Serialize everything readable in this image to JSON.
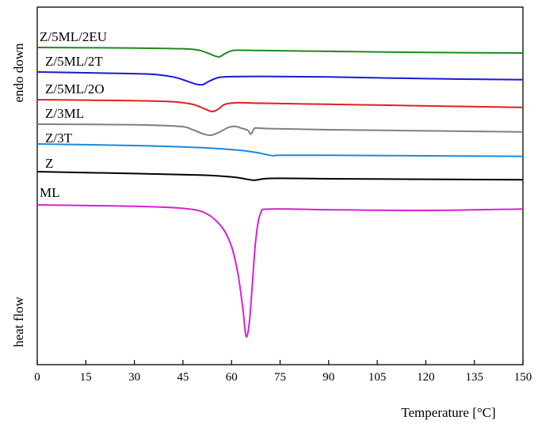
{
  "chart_data": {
    "type": "line",
    "xlabel": "Temperature [°C]",
    "ylabel_top": "endo down",
    "ylabel_bottom": "heat flow",
    "xlim": [
      0,
      150
    ],
    "xticks": [
      0,
      15,
      30,
      45,
      60,
      75,
      90,
      105,
      120,
      135,
      150
    ],
    "grid": false,
    "y_axis_values": "none (arbitrary units, curves offset vertically)",
    "series": [
      {
        "name": "Z/5ML/2EU",
        "color": "#1f8a1f",
        "x": [
          0,
          30,
          45,
          50,
          53,
          56,
          58,
          60,
          62,
          70,
          90,
          120,
          150
        ],
        "y": [
          0.0,
          -0.05,
          -0.12,
          -0.25,
          -0.55,
          -0.85,
          -0.55,
          -0.3,
          -0.25,
          -0.28,
          -0.35,
          -0.45,
          -0.5
        ]
      },
      {
        "name": "Z/5ML/2T",
        "color": "#1a1ad0",
        "x": [
          0,
          20,
          35,
          42,
          46,
          49,
          51,
          53,
          56,
          60,
          70,
          90,
          120,
          150
        ],
        "y": [
          0.0,
          -0.1,
          -0.2,
          -0.45,
          -0.8,
          -1.1,
          -1.15,
          -0.85,
          -0.5,
          -0.42,
          -0.4,
          -0.45,
          -0.6,
          -0.7
        ]
      },
      {
        "name": "Z/5ML/2O",
        "color": "#e02020",
        "x": [
          0,
          30,
          42,
          48,
          51,
          54,
          56,
          58,
          62,
          70,
          100,
          130,
          150
        ],
        "y": [
          0.0,
          -0.1,
          -0.2,
          -0.45,
          -0.8,
          -1.15,
          -0.9,
          -0.45,
          -0.3,
          -0.35,
          -0.5,
          -0.65,
          -0.75
        ]
      },
      {
        "name": "Z/3ML",
        "color": "#7f7f7f",
        "x": [
          0,
          30,
          44,
          48,
          51,
          53.5,
          56,
          59,
          61,
          63,
          65,
          66,
          67,
          68,
          72,
          90,
          120,
          150
        ],
        "y": [
          0.0,
          -0.05,
          -0.2,
          -0.5,
          -0.85,
          -1.0,
          -0.75,
          -0.3,
          -0.2,
          -0.35,
          -0.55,
          -0.9,
          -0.4,
          -0.35,
          -0.4,
          -0.5,
          -0.6,
          -0.7
        ]
      },
      {
        "name": "Z/3T",
        "color": "#1a8adf",
        "x": [
          0,
          30,
          50,
          62,
          68,
          71,
          73,
          75,
          90,
          120,
          150
        ],
        "y": [
          0.0,
          -0.15,
          -0.35,
          -0.6,
          -0.85,
          -1.05,
          -1.15,
          -1.1,
          -1.1,
          -1.15,
          -1.2
        ]
      },
      {
        "name": "Z",
        "color": "#000000",
        "x": [
          0,
          30,
          50,
          60,
          64,
          67,
          70,
          75,
          90,
          120,
          150
        ],
        "y": [
          0.0,
          -0.2,
          -0.35,
          -0.55,
          -0.75,
          -0.9,
          -0.75,
          -0.7,
          -0.75,
          -0.8,
          -0.85
        ]
      },
      {
        "name": "ML",
        "color": "#d81fd8",
        "x": [
          0,
          30,
          45,
          52,
          57,
          60,
          62,
          63.5,
          64.5,
          65.5,
          66.5,
          67.5,
          69,
          72,
          90,
          120,
          150
        ],
        "y": [
          0.0,
          -0.1,
          -0.25,
          -0.6,
          -1.6,
          -3.0,
          -5.0,
          -7.5,
          -9.5,
          -8.5,
          -5.5,
          -2.5,
          -0.6,
          -0.3,
          -0.35,
          -0.4,
          -0.3
        ]
      }
    ]
  }
}
